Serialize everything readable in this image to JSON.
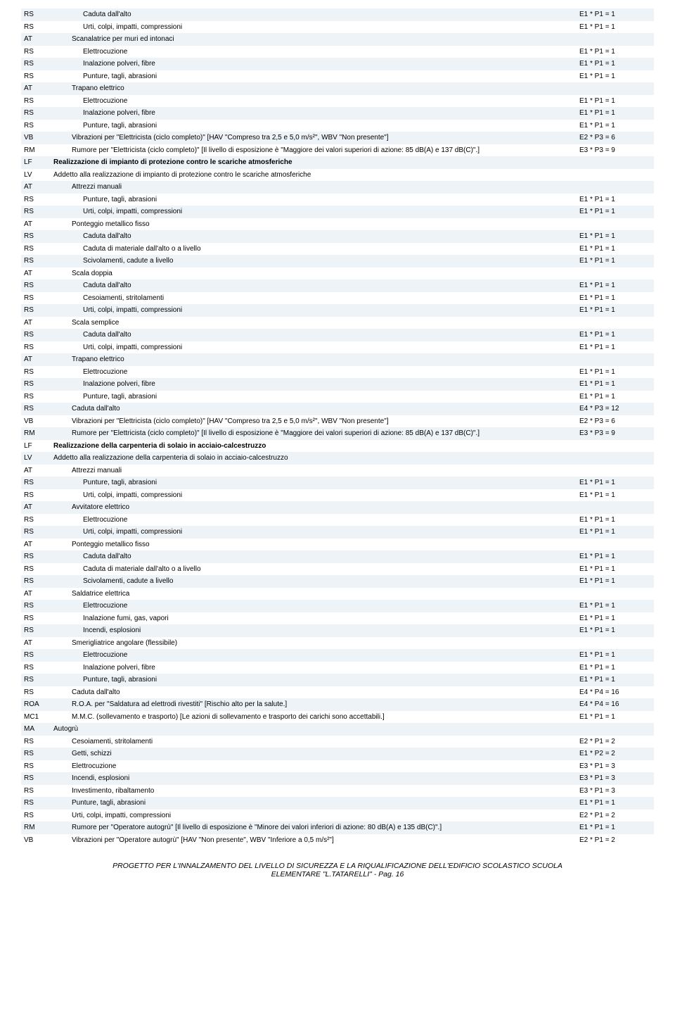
{
  "colors": {
    "row_even": "#eef3f8",
    "row_odd": "#ffffff",
    "text": "#000000"
  },
  "footer": {
    "line1": "PROGETTO PER L'INNALZAMENTO DEL LIVELLO DI SICUREZZA E LA RIQUALIFICAZIONE DELL'EDIFICIO SCOLASTICO SCUOLA",
    "line2": "ELEMENTARE \"L.TATARELLI\" - Pag. 16"
  },
  "rows": [
    {
      "code": "RS",
      "desc": "Caduta dall'alto",
      "val": "E1 * P1 = 1",
      "indent": 2
    },
    {
      "code": "RS",
      "desc": "Urti, colpi, impatti, compressioni",
      "val": "E1 * P1 = 1",
      "indent": 2
    },
    {
      "code": "AT",
      "desc": "Scanalatrice per muri ed intonaci",
      "val": "",
      "indent": 1
    },
    {
      "code": "RS",
      "desc": "Elettrocuzione",
      "val": "E1 * P1 = 1",
      "indent": 2
    },
    {
      "code": "RS",
      "desc": "Inalazione polveri, fibre",
      "val": "E1 * P1 = 1",
      "indent": 2
    },
    {
      "code": "RS",
      "desc": "Punture, tagli, abrasioni",
      "val": "E1 * P1 = 1",
      "indent": 2
    },
    {
      "code": "AT",
      "desc": "Trapano elettrico",
      "val": "",
      "indent": 1
    },
    {
      "code": "RS",
      "desc": "Elettrocuzione",
      "val": "E1 * P1 = 1",
      "indent": 2
    },
    {
      "code": "RS",
      "desc": "Inalazione polveri, fibre",
      "val": "E1 * P1 = 1",
      "indent": 2
    },
    {
      "code": "RS",
      "desc": "Punture, tagli, abrasioni",
      "val": "E1 * P1 = 1",
      "indent": 2
    },
    {
      "code": "VB",
      "desc": "Vibrazioni per \"Elettricista (ciclo completo)\" [HAV \"Compreso tra 2,5 e 5,0 m/s²\", WBV \"Non presente\"]",
      "val": "E2 * P3 = 6",
      "indent": 1
    },
    {
      "code": "RM",
      "desc": "Rumore per \"Elettricista (ciclo completo)\" [Il livello di esposizione è \"Maggiore dei valori superiori di azione: 85 dB(A) e 137 dB(C)\".]",
      "val": "E3 * P3 = 9",
      "indent": 1
    },
    {
      "code": "LF",
      "desc": "Realizzazione di impianto di protezione contro le scariche atmosferiche",
      "val": "",
      "indent": 0,
      "bold": true
    },
    {
      "code": "LV",
      "desc": "Addetto alla realizzazione di impianto di protezione contro le scariche atmosferiche",
      "val": "",
      "indent": 0
    },
    {
      "code": "AT",
      "desc": "Attrezzi manuali",
      "val": "",
      "indent": 1
    },
    {
      "code": "RS",
      "desc": "Punture, tagli, abrasioni",
      "val": "E1 * P1 = 1",
      "indent": 2
    },
    {
      "code": "RS",
      "desc": "Urti, colpi, impatti, compressioni",
      "val": "E1 * P1 = 1",
      "indent": 2
    },
    {
      "code": "AT",
      "desc": "Ponteggio metallico fisso",
      "val": "",
      "indent": 1
    },
    {
      "code": "RS",
      "desc": "Caduta dall'alto",
      "val": "E1 * P1 = 1",
      "indent": 2
    },
    {
      "code": "RS",
      "desc": "Caduta di materiale dall'alto o a livello",
      "val": "E1 * P1 = 1",
      "indent": 2
    },
    {
      "code": "RS",
      "desc": "Scivolamenti, cadute a livello",
      "val": "E1 * P1 = 1",
      "indent": 2
    },
    {
      "code": "AT",
      "desc": "Scala doppia",
      "val": "",
      "indent": 1
    },
    {
      "code": "RS",
      "desc": "Caduta dall'alto",
      "val": "E1 * P1 = 1",
      "indent": 2
    },
    {
      "code": "RS",
      "desc": "Cesoiamenti, stritolamenti",
      "val": "E1 * P1 = 1",
      "indent": 2
    },
    {
      "code": "RS",
      "desc": "Urti, colpi, impatti, compressioni",
      "val": "E1 * P1 = 1",
      "indent": 2
    },
    {
      "code": "AT",
      "desc": "Scala semplice",
      "val": "",
      "indent": 1
    },
    {
      "code": "RS",
      "desc": "Caduta dall'alto",
      "val": "E1 * P1 = 1",
      "indent": 2
    },
    {
      "code": "RS",
      "desc": "Urti, colpi, impatti, compressioni",
      "val": "E1 * P1 = 1",
      "indent": 2
    },
    {
      "code": "AT",
      "desc": "Trapano elettrico",
      "val": "",
      "indent": 1
    },
    {
      "code": "RS",
      "desc": "Elettrocuzione",
      "val": "E1 * P1 = 1",
      "indent": 2
    },
    {
      "code": "RS",
      "desc": "Inalazione polveri, fibre",
      "val": "E1 * P1 = 1",
      "indent": 2
    },
    {
      "code": "RS",
      "desc": "Punture, tagli, abrasioni",
      "val": "E1 * P1 = 1",
      "indent": 2
    },
    {
      "code": "RS",
      "desc": "Caduta dall'alto",
      "val": "E4 * P3 = 12",
      "indent": 1
    },
    {
      "code": "VB",
      "desc": "Vibrazioni per \"Elettricista (ciclo completo)\" [HAV \"Compreso tra 2,5 e 5,0 m/s²\", WBV \"Non presente\"]",
      "val": "E2 * P3 = 6",
      "indent": 1
    },
    {
      "code": "RM",
      "desc": "Rumore per \"Elettricista (ciclo completo)\" [Il livello di esposizione è \"Maggiore dei valori superiori di azione: 85 dB(A) e 137 dB(C)\".]",
      "val": "E3 * P3 = 9",
      "indent": 1
    },
    {
      "code": "LF",
      "desc": "Realizzazione della carpenteria di solaio in acciaio-calcestruzzo",
      "val": "",
      "indent": 0,
      "bold": true
    },
    {
      "code": "LV",
      "desc": "Addetto alla realizzazione della carpenteria di solaio in acciaio-calcestruzzo",
      "val": "",
      "indent": 0
    },
    {
      "code": "AT",
      "desc": "Attrezzi manuali",
      "val": "",
      "indent": 1
    },
    {
      "code": "RS",
      "desc": "Punture, tagli, abrasioni",
      "val": "E1 * P1 = 1",
      "indent": 2
    },
    {
      "code": "RS",
      "desc": "Urti, colpi, impatti, compressioni",
      "val": "E1 * P1 = 1",
      "indent": 2
    },
    {
      "code": "AT",
      "desc": "Avvitatore elettrico",
      "val": "",
      "indent": 1
    },
    {
      "code": "RS",
      "desc": "Elettrocuzione",
      "val": "E1 * P1 = 1",
      "indent": 2
    },
    {
      "code": "RS",
      "desc": "Urti, colpi, impatti, compressioni",
      "val": "E1 * P1 = 1",
      "indent": 2
    },
    {
      "code": "AT",
      "desc": "Ponteggio metallico fisso",
      "val": "",
      "indent": 1
    },
    {
      "code": "RS",
      "desc": "Caduta dall'alto",
      "val": "E1 * P1 = 1",
      "indent": 2
    },
    {
      "code": "RS",
      "desc": "Caduta di materiale dall'alto o a livello",
      "val": "E1 * P1 = 1",
      "indent": 2
    },
    {
      "code": "RS",
      "desc": "Scivolamenti, cadute a livello",
      "val": "E1 * P1 = 1",
      "indent": 2
    },
    {
      "code": "AT",
      "desc": "Saldatrice elettrica",
      "val": "",
      "indent": 1
    },
    {
      "code": "RS",
      "desc": "Elettrocuzione",
      "val": "E1 * P1 = 1",
      "indent": 2
    },
    {
      "code": "RS",
      "desc": "Inalazione fumi, gas, vapori",
      "val": "E1 * P1 = 1",
      "indent": 2
    },
    {
      "code": "RS",
      "desc": "Incendi, esplosioni",
      "val": "E1 * P1 = 1",
      "indent": 2
    },
    {
      "code": "AT",
      "desc": "Smerigliatrice angolare (flessibile)",
      "val": "",
      "indent": 1
    },
    {
      "code": "RS",
      "desc": "Elettrocuzione",
      "val": "E1 * P1 = 1",
      "indent": 2
    },
    {
      "code": "RS",
      "desc": "Inalazione polveri, fibre",
      "val": "E1 * P1 = 1",
      "indent": 2
    },
    {
      "code": "RS",
      "desc": "Punture, tagli, abrasioni",
      "val": "E1 * P1 = 1",
      "indent": 2
    },
    {
      "code": "RS",
      "desc": "Caduta dall'alto",
      "val": "E4 * P4 = 16",
      "indent": 1
    },
    {
      "code": "ROA",
      "desc": "R.O.A. per \"Saldatura ad elettrodi rivestiti\" [Rischio alto per la salute.]",
      "val": "E4 * P4 = 16",
      "indent": 1
    },
    {
      "code": "MC1",
      "desc": "M.M.C. (sollevamento e trasporto) [Le azioni di sollevamento e trasporto dei carichi sono accettabili.]",
      "val": "E1 * P1 = 1",
      "indent": 1
    },
    {
      "code": "MA",
      "desc": "Autogrù",
      "val": "",
      "indent": 0
    },
    {
      "code": "RS",
      "desc": "Cesoiamenti, stritolamenti",
      "val": "E2 * P1 = 2",
      "indent": 1
    },
    {
      "code": "RS",
      "desc": "Getti, schizzi",
      "val": "E1 * P2 = 2",
      "indent": 1
    },
    {
      "code": "RS",
      "desc": "Elettrocuzione",
      "val": "E3 * P1 = 3",
      "indent": 1
    },
    {
      "code": "RS",
      "desc": "Incendi, esplosioni",
      "val": "E3 * P1 = 3",
      "indent": 1
    },
    {
      "code": "RS",
      "desc": "Investimento, ribaltamento",
      "val": "E3 * P1 = 3",
      "indent": 1
    },
    {
      "code": "RS",
      "desc": "Punture, tagli, abrasioni",
      "val": "E1 * P1 = 1",
      "indent": 1
    },
    {
      "code": "RS",
      "desc": "Urti, colpi, impatti, compressioni",
      "val": "E2 * P1 = 2",
      "indent": 1
    },
    {
      "code": "RM",
      "desc": "Rumore per \"Operatore autogrù\" [Il livello di esposizione è \"Minore dei valori inferiori di azione: 80 dB(A) e 135 dB(C)\".]",
      "val": "E1 * P1 = 1",
      "indent": 1
    },
    {
      "code": "VB",
      "desc": "Vibrazioni per \"Operatore autogrù\" [HAV \"Non presente\", WBV \"Inferiore a 0,5 m/s²\"]",
      "val": "E2 * P1 = 2",
      "indent": 1
    }
  ]
}
